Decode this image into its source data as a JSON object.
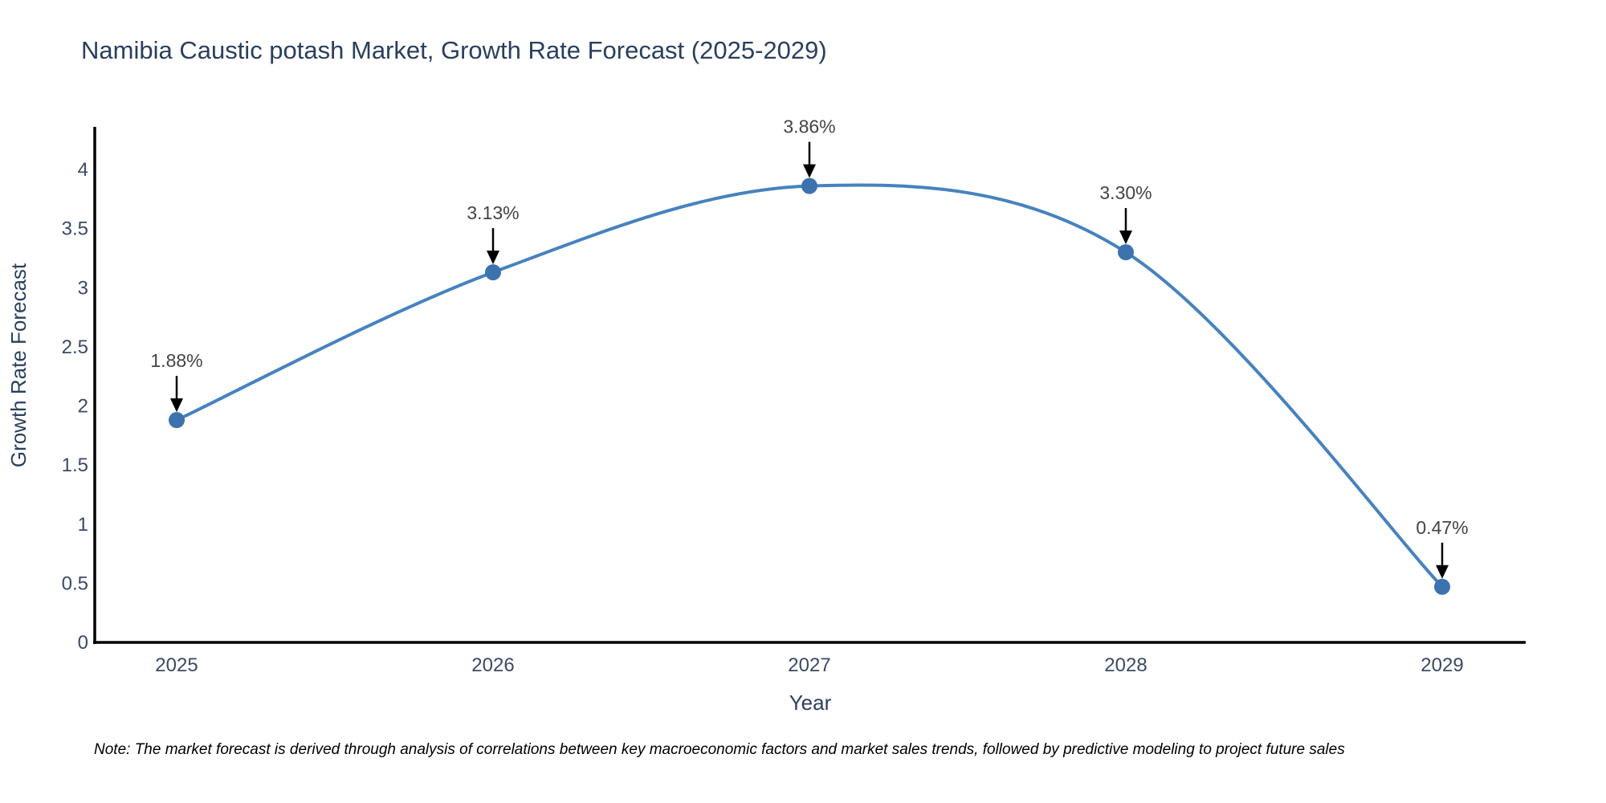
{
  "title": "Namibia Caustic potash Market, Growth Rate Forecast (2025-2029)",
  "note": "Note: The market forecast is derived through analysis of correlations between key macroeconomic factors and market sales trends, followed by predictive modeling to project future sales",
  "chart_data": {
    "type": "line",
    "line_shape": "spline",
    "title": "Namibia Caustic potash Market, Growth Rate Forecast (2025-2029)",
    "xlabel": "Year",
    "ylabel": "Growth Rate Forecast",
    "x": [
      "2025",
      "2026",
      "2027",
      "2028",
      "2029"
    ],
    "values": [
      1.88,
      3.13,
      3.86,
      3.3,
      0.47
    ],
    "point_labels": [
      "1.88%",
      "3.13%",
      "3.86%",
      "3.30%",
      "0.47%"
    ],
    "yticks": [
      0,
      0.5,
      1,
      1.5,
      2,
      2.5,
      3,
      3.5,
      4
    ],
    "ylim": [
      0,
      4.35
    ],
    "grid": false,
    "legend": "none",
    "annotations_note": "each point labeled with value, black arrow pointing down to marker"
  },
  "colors": {
    "line": "#4682be",
    "marker": "#3c73af",
    "axis": "#000000",
    "title": "#2a3f5f",
    "axis_label": "#2a3f5f",
    "tick": "#3a4a66",
    "annotation_text": "#444444",
    "annotation_arrow": "#000000",
    "note": "#000000",
    "background": "#ffffff"
  }
}
